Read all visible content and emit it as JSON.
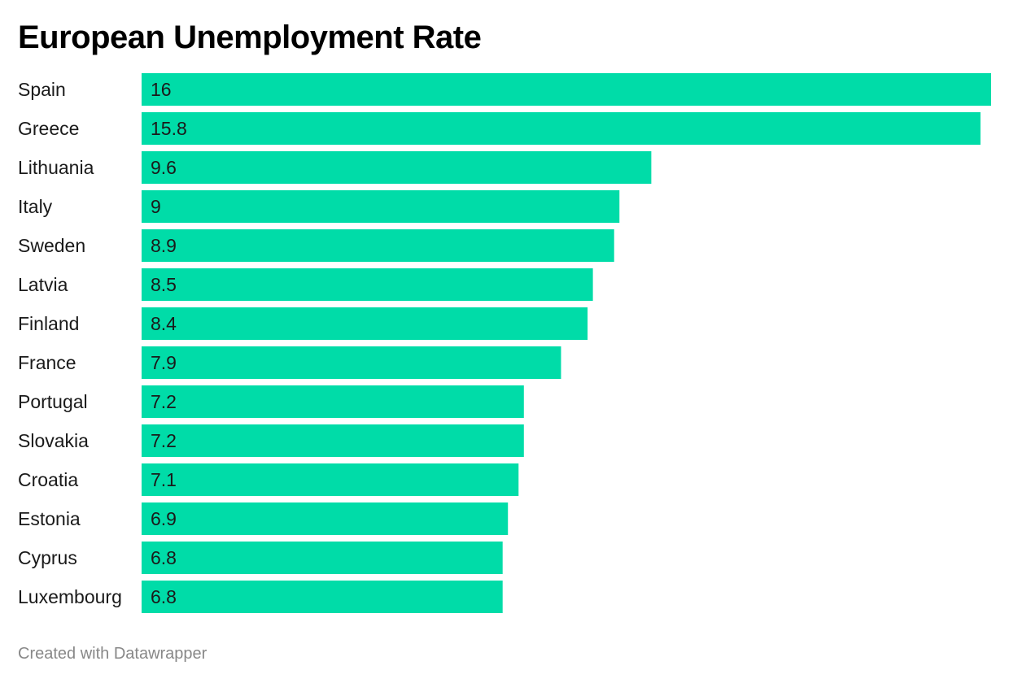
{
  "chart_data": {
    "type": "bar",
    "orientation": "horizontal",
    "title": "European Unemployment Rate",
    "categories": [
      "Spain",
      "Greece",
      "Lithuania",
      "Italy",
      "Sweden",
      "Latvia",
      "Finland",
      "France",
      "Portugal",
      "Slovakia",
      "Croatia",
      "Estonia",
      "Cyprus",
      "Luxembourg"
    ],
    "values": [
      16,
      15.8,
      9.6,
      9,
      8.9,
      8.5,
      8.4,
      7.9,
      7.2,
      7.2,
      7.1,
      6.9,
      6.8,
      6.8
    ],
    "value_labels": [
      "16",
      "15.8",
      "9.6",
      "9",
      "8.9",
      "8.5",
      "8.4",
      "7.9",
      "7.2",
      "7.2",
      "7.1",
      "6.9",
      "6.8",
      "6.8"
    ],
    "xlim": [
      0,
      16
    ],
    "grid": false,
    "bar_color": "#00dca8",
    "label_color": "#1a1a1a"
  },
  "footer": {
    "credit": "Created with Datawrapper"
  }
}
